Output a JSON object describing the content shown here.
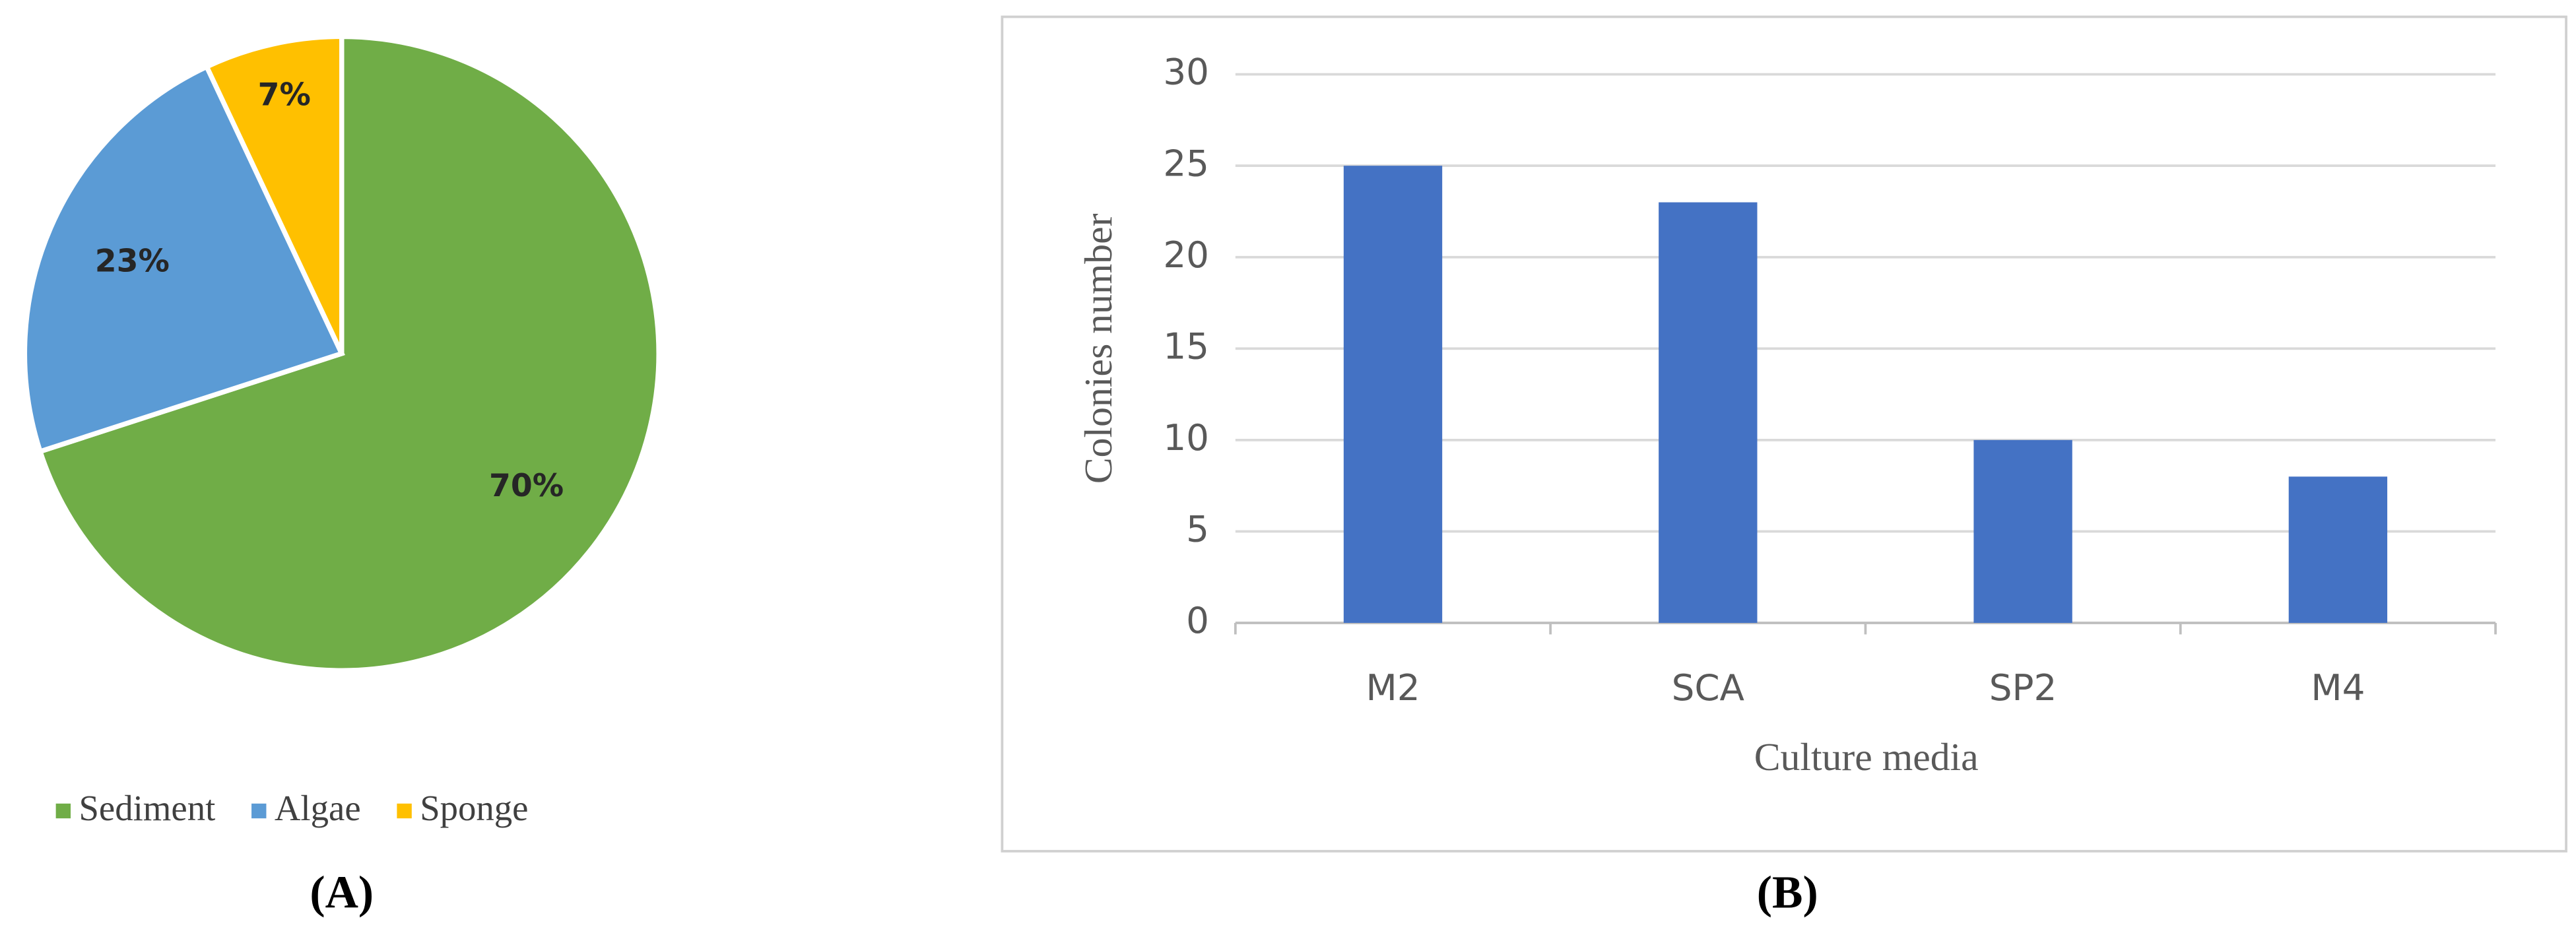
{
  "chart_data": [
    {
      "type": "pie",
      "label": "(A)",
      "categories": [
        "Sediment",
        "Algae",
        "Sponge"
      ],
      "values": [
        70,
        23,
        7
      ],
      "value_labels": [
        "70%",
        "23%",
        "7%"
      ],
      "colors": [
        "#70ad47",
        "#5b9bd5",
        "#ffc000"
      ],
      "legend": "bottom"
    },
    {
      "type": "bar",
      "label": "(B)",
      "x_label": "Culture media",
      "y_label": "Colonies number",
      "categories": [
        "M2",
        "SCA",
        "SP2",
        "M4"
      ],
      "values": [
        25,
        23,
        10,
        8
      ],
      "color": "#4472c4",
      "ylim": [
        0,
        30
      ],
      "yticks": [
        0,
        5,
        10,
        15,
        20,
        25,
        30
      ],
      "grid": true
    }
  ]
}
